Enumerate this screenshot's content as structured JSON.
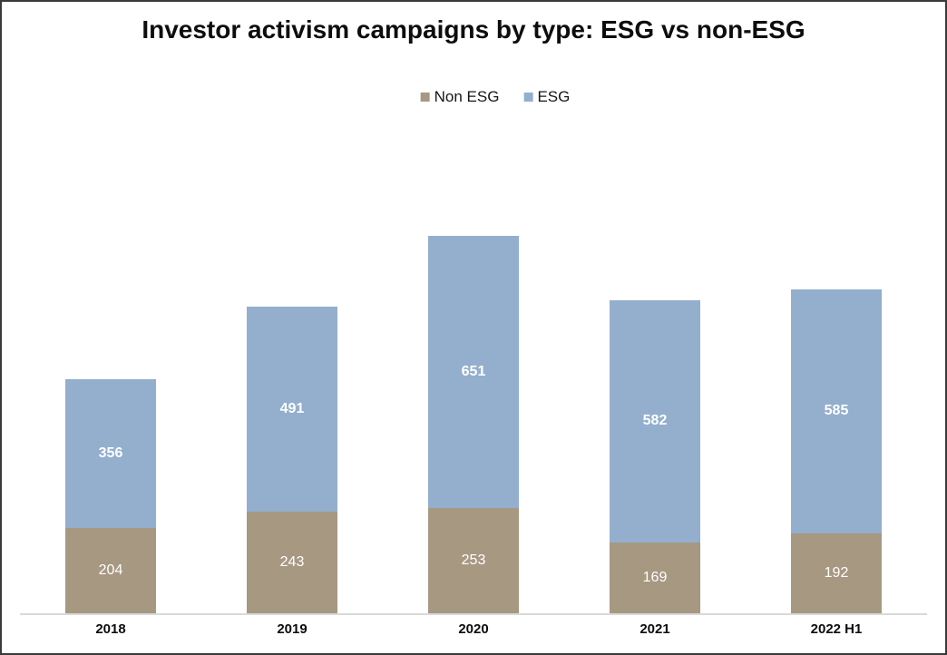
{
  "chart_data": {
    "type": "bar",
    "stacked": true,
    "title": "Investor activism campaigns by type: ESG vs non-ESG",
    "categories": [
      "2018",
      "2019",
      "2020",
      "2021",
      "2022 H1"
    ],
    "series": [
      {
        "name": "Non ESG",
        "color": "#A79882",
        "values": [
          204,
          243,
          253,
          169,
          192
        ],
        "label_bold": false
      },
      {
        "name": "ESG",
        "color": "#93AFCD",
        "values": [
          356,
          491,
          651,
          582,
          585
        ],
        "label_bold": true
      }
    ],
    "xlabel": "",
    "ylabel": "",
    "ylim": [
      0,
      1000
    ],
    "grid": false,
    "legend_position": "top-center",
    "value_labels": "inside-center",
    "value_label_color": "#FFFFFF",
    "axis_line_color": "#D9D9D9",
    "frame_border_color": "#3A3A3A",
    "background_color": "#FFFFFF",
    "text_color": "#0D0D0D"
  }
}
